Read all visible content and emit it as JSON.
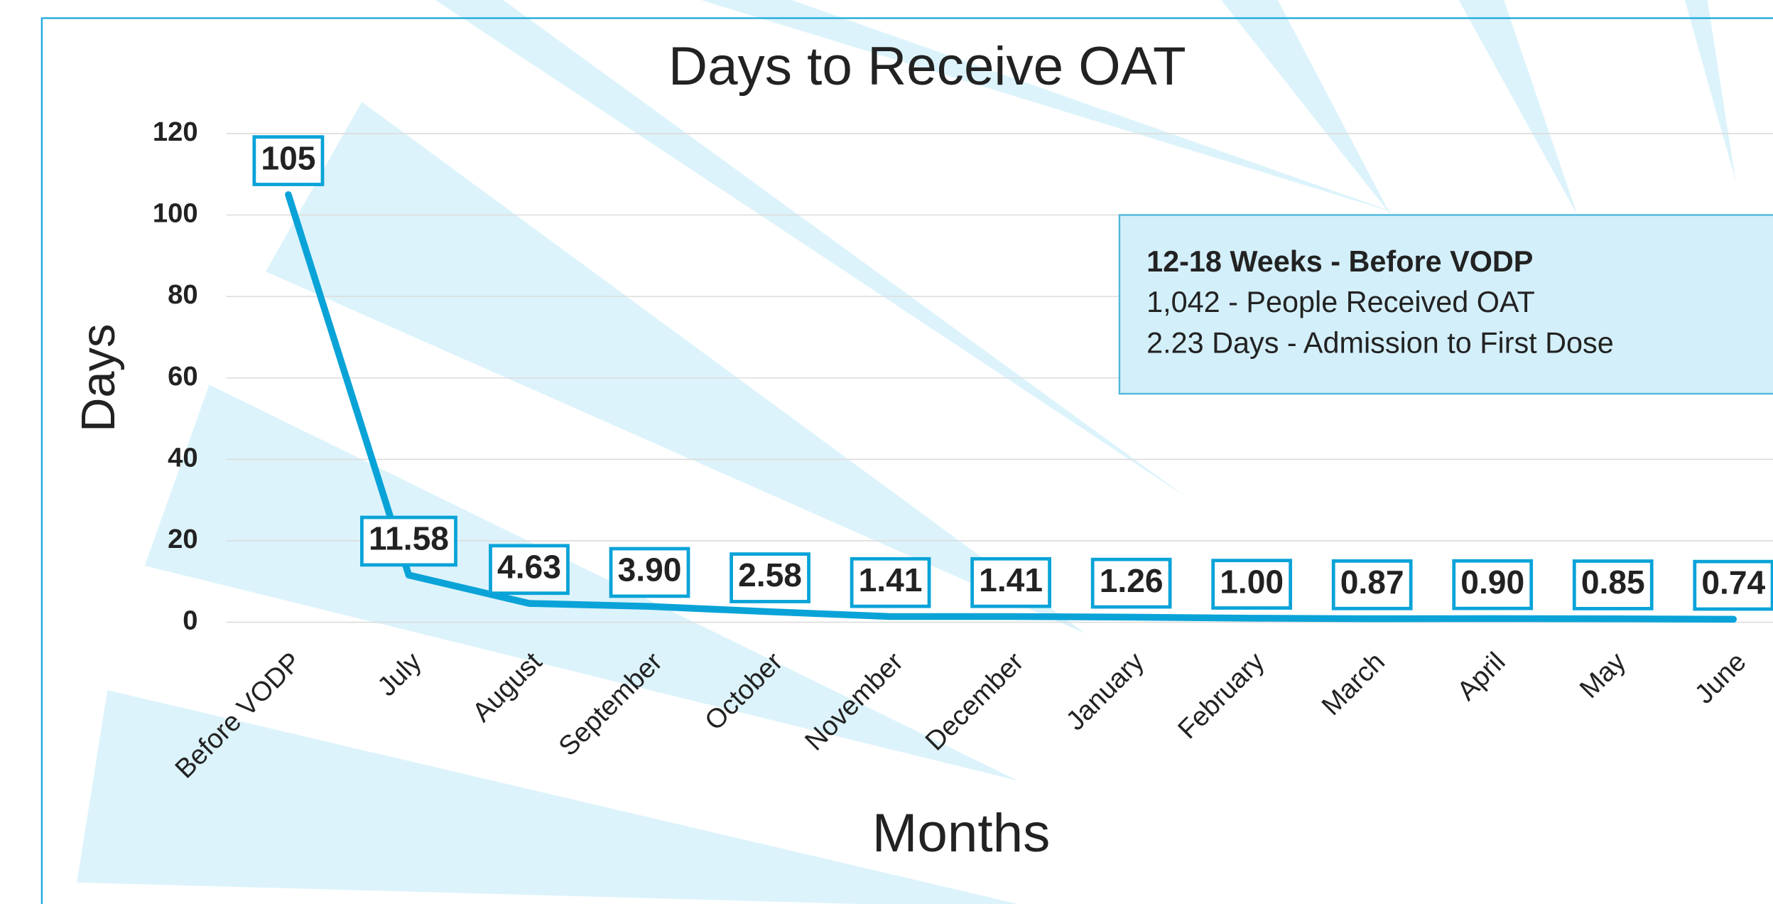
{
  "chart_data": {
    "type": "line",
    "title": "Days to Receive OAT",
    "x_label": "Months",
    "y_label": "Days",
    "categories": [
      "Before VODP",
      "July",
      "August",
      "September",
      "October",
      "November",
      "December",
      "January",
      "February",
      "March",
      "April",
      "May",
      "June"
    ],
    "values": [
      105,
      11.58,
      4.63,
      3.9,
      2.58,
      1.41,
      1.41,
      1.26,
      1.0,
      0.87,
      0.9,
      0.85,
      0.74
    ],
    "value_labels": [
      "105",
      "11.58",
      "4.63",
      "3.90",
      "2.58",
      "1.41",
      "1.41",
      "1.26",
      "1.00",
      "0.87",
      "0.90",
      "0.85",
      "0.74"
    ],
    "color": "#0aa3d8",
    "ylim": [
      0,
      120
    ],
    "yticks": [
      0,
      20,
      40,
      60,
      80,
      100,
      120
    ],
    "grid": true,
    "annotation": {
      "title": "12-18 Weeks - Before VODP",
      "lines": [
        "1,042 - People Received OAT",
        "2.23 Days - Admission to First Dose"
      ]
    }
  }
}
